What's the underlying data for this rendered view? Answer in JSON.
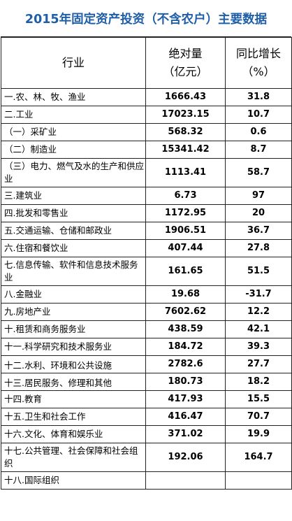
{
  "title": "2015年固定资产投资（不含农户）主要数据",
  "header": {
    "industry": "行业",
    "amount_line1": "绝对量",
    "amount_line2": "（亿元）",
    "growth_line1": "同比增长",
    "growth_line2": "（%）"
  },
  "rows": [
    {
      "name": "一.农、林、牧、渔业",
      "value": "1666.43",
      "growth": "31.8"
    },
    {
      "name": "二.工业",
      "value": "17023.15",
      "growth": "10.7"
    },
    {
      "name": "（一）采矿业",
      "value": "568.32",
      "growth": "0.6"
    },
    {
      "name": "（二）制造业",
      "value": "15341.42",
      "growth": "8.7"
    },
    {
      "name": "（三）电力、燃气及水的生产和供应业",
      "value": "1113.41",
      "growth": "58.7"
    },
    {
      "name": "三.建筑业",
      "value": "6.73",
      "growth": "97"
    },
    {
      "name": "四.批发和零售业",
      "value": "1172.95",
      "growth": "20"
    },
    {
      "name": "五.交通运输、仓储和邮政业",
      "value": "1906.51",
      "growth": "36.7"
    },
    {
      "name": "六.住宿和餐饮业",
      "value": "407.44",
      "growth": "27.8"
    },
    {
      "name": "七.信息传输、软件和信息技术服务业",
      "value": "161.65",
      "growth": "51.5"
    },
    {
      "name": "八.金融业",
      "value": "19.68",
      "growth": "-31.7"
    },
    {
      "name": "九.房地产业",
      "value": "7602.62",
      "growth": "12.2"
    },
    {
      "name": "十.租赁和商务服务业",
      "value": "438.59",
      "growth": "42.1"
    },
    {
      "name": "十一.科学研究和技术服务业",
      "value": "184.72",
      "growth": "39.3"
    },
    {
      "name": "十二.水利、环境和公共设施",
      "value": "2782.6",
      "growth": "27.7"
    },
    {
      "name": "十三.居民服务、修理和其他",
      "value": "180.73",
      "growth": "18.2"
    },
    {
      "name": "十四.教育",
      "value": "417.93",
      "growth": "15.5"
    },
    {
      "name": "十五.卫生和社会工作",
      "value": "416.47",
      "growth": "70.7"
    },
    {
      "name": "十六.文化、体育和娱乐业",
      "value": "371.02",
      "growth": "19.9"
    },
    {
      "name": "十七.公共管理、社会保障和社会组织",
      "value": "192.06",
      "growth": "164.7"
    },
    {
      "name": "十八.国际组织",
      "value": "",
      "growth": ""
    }
  ]
}
